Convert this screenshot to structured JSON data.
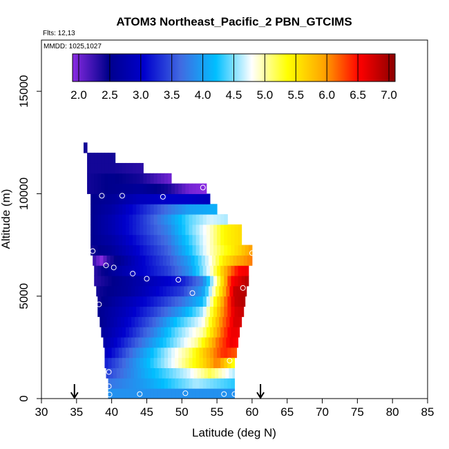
{
  "chart_data": {
    "type": "heatmap",
    "title": "ATOM3 Northeast_Pacific_2 PBN_GTCIMS",
    "flights": "Flts: 12,13",
    "dates": "MMDD: 1025,1027",
    "xlabel": "Latitude (deg N)",
    "ylabel": "Altitude (m)",
    "xlim": [
      30,
      85
    ],
    "ylim": [
      0,
      17500
    ],
    "xticks": [
      "30",
      "35",
      "40",
      "45",
      "50",
      "55",
      "60",
      "65",
      "70",
      "75",
      "80",
      "85"
    ],
    "yticks": [
      "0",
      "5000",
      "10000",
      "15000"
    ],
    "colorbar": {
      "range": [
        1.9,
        7.1
      ],
      "ticks": [
        "2.0",
        "2.5",
        "3.0",
        "3.5",
        "4.0",
        "4.5",
        "5.0",
        "5.5",
        "6.0",
        "6.5",
        "7.0"
      ],
      "colors": [
        "#8a2be2",
        "#00008b",
        "#0000cd",
        "#4169e1",
        "#00bfff",
        "#ffffff",
        "#ffff00",
        "#ffa500",
        "#ff0000",
        "#8b0000"
      ]
    },
    "altitude_bands": [
      {
        "y0": 0,
        "y1": 500,
        "x0": 39.5,
        "x1": 57.5,
        "values": [
          [
            39.5,
            3.9
          ],
          [
            57.5,
            3.9
          ]
        ]
      },
      {
        "y0": 500,
        "y1": 1000,
        "x0": 39.5,
        "x1": 57.5,
        "values": [
          [
            39.5,
            3.7
          ],
          [
            45,
            4.0
          ],
          [
            52,
            4.6
          ],
          [
            57.5,
            4.3
          ]
        ]
      },
      {
        "y0": 1000,
        "y1": 1500,
        "x0": 39.2,
        "x1": 57.5,
        "values": [
          [
            39.2,
            3.4
          ],
          [
            45,
            4.1
          ],
          [
            51,
            4.7
          ],
          [
            54,
            5.2
          ],
          [
            57.5,
            4.6
          ]
        ]
      },
      {
        "y0": 1500,
        "y1": 2000,
        "x0": 39.0,
        "x1": 57.5,
        "values": [
          [
            39,
            3.2
          ],
          [
            44,
            4.0
          ],
          [
            49,
            4.8
          ],
          [
            53,
            5.6
          ],
          [
            55,
            6.1
          ],
          [
            57.5,
            5.3
          ]
        ]
      },
      {
        "y0": 2000,
        "y1": 2500,
        "x0": 39.0,
        "x1": 57.8,
        "values": [
          [
            39,
            2.9
          ],
          [
            43,
            3.7
          ],
          [
            48,
            4.6
          ],
          [
            51,
            5.1
          ],
          [
            53.5,
            5.8
          ],
          [
            56,
            6.4
          ],
          [
            57.8,
            6.2
          ]
        ]
      },
      {
        "y0": 2500,
        "y1": 3000,
        "x0": 38.8,
        "x1": 58.0,
        "values": [
          [
            38.8,
            2.7
          ],
          [
            42,
            3.3
          ],
          [
            46,
            4.0
          ],
          [
            49,
            4.5
          ],
          [
            52,
            5.0
          ],
          [
            55,
            6.1
          ],
          [
            57,
            6.6
          ],
          [
            58,
            6.5
          ]
        ]
      },
      {
        "y0": 3000,
        "y1": 3500,
        "x0": 38.5,
        "x1": 58.2,
        "values": [
          [
            38.5,
            2.6
          ],
          [
            42,
            3.1
          ],
          [
            46,
            3.8
          ],
          [
            49,
            4.4
          ],
          [
            53,
            5.0
          ],
          [
            55.5,
            6.1
          ],
          [
            57,
            6.6
          ],
          [
            58.2,
            6.6
          ]
        ]
      },
      {
        "y0": 3500,
        "y1": 4000,
        "x0": 38.3,
        "x1": 58.5,
        "values": [
          [
            38.3,
            2.5
          ],
          [
            42,
            3.0
          ],
          [
            46,
            3.6
          ],
          [
            49,
            4.2
          ],
          [
            53,
            4.8
          ],
          [
            55.5,
            6.0
          ],
          [
            57.5,
            6.7
          ],
          [
            58.5,
            6.7
          ]
        ]
      },
      {
        "y0": 4000,
        "y1": 4500,
        "x0": 38.0,
        "x1": 58.8,
        "values": [
          [
            38,
            2.5
          ],
          [
            42,
            2.9
          ],
          [
            46,
            3.4
          ],
          [
            50,
            4.0
          ],
          [
            53,
            4.6
          ],
          [
            55.5,
            5.9
          ],
          [
            57.5,
            6.7
          ],
          [
            58.8,
            6.8
          ]
        ]
      },
      {
        "y0": 4500,
        "y1": 5000,
        "x0": 38.0,
        "x1": 59.0,
        "values": [
          [
            38,
            2.4
          ],
          [
            42,
            2.8
          ],
          [
            46,
            3.2
          ],
          [
            50,
            3.7
          ],
          [
            53,
            4.2
          ],
          [
            55,
            5.5
          ],
          [
            57.5,
            6.8
          ],
          [
            59,
            6.9
          ]
        ]
      },
      {
        "y0": 5000,
        "y1": 5500,
        "x0": 37.8,
        "x1": 59.2,
        "values": [
          [
            37.8,
            2.4
          ],
          [
            42,
            2.6
          ],
          [
            46,
            3.0
          ],
          [
            50,
            3.4
          ],
          [
            53,
            4.0
          ],
          [
            55,
            5.2
          ],
          [
            57.5,
            6.8
          ],
          [
            59.2,
            6.9
          ]
        ]
      },
      {
        "y0": 5500,
        "y1": 6000,
        "x0": 37.5,
        "x1": 59.5,
        "values": [
          [
            37.5,
            2.3
          ],
          [
            42,
            2.6
          ],
          [
            46,
            2.9
          ],
          [
            50,
            3.2
          ],
          [
            53,
            3.8
          ],
          [
            55,
            5.0
          ],
          [
            57,
            6.5
          ],
          [
            59.5,
            6.9
          ]
        ]
      },
      {
        "y0": 6000,
        "y1": 6500,
        "x0": 37.5,
        "x1": 59.5,
        "values": [
          [
            37.5,
            2.3
          ],
          [
            40,
            2.6
          ],
          [
            44,
            3.0
          ],
          [
            48,
            3.4
          ],
          [
            51,
            3.9
          ],
          [
            54,
            4.8
          ],
          [
            56,
            5.8
          ],
          [
            58,
            6.5
          ],
          [
            59.5,
            6.6
          ]
        ]
      },
      {
        "y0": 6500,
        "y1": 7000,
        "x0": 37.3,
        "x1": 60.0,
        "values": [
          [
            37.3,
            2.3
          ],
          [
            38.5,
            1.9
          ],
          [
            39.5,
            2.3
          ],
          [
            44,
            3.0
          ],
          [
            48,
            3.5
          ],
          [
            51,
            4.0
          ],
          [
            54,
            4.8
          ],
          [
            56,
            5.5
          ],
          [
            58,
            5.9
          ],
          [
            60,
            6.1
          ]
        ]
      },
      {
        "y0": 7000,
        "y1": 7500,
        "x0": 37.0,
        "x1": 60.0,
        "values": [
          [
            37,
            2.4
          ],
          [
            40,
            2.6
          ],
          [
            44,
            3.1
          ],
          [
            48,
            3.6
          ],
          [
            51,
            4.2
          ],
          [
            54,
            4.9
          ],
          [
            56,
            5.3
          ],
          [
            58,
            5.6
          ],
          [
            60,
            6.0
          ]
        ]
      },
      {
        "y0": 7500,
        "y1": 8000,
        "x0": 37.0,
        "x1": 58.5,
        "values": [
          [
            37,
            2.5
          ],
          [
            40,
            2.7
          ],
          [
            44,
            3.2
          ],
          [
            48,
            3.7
          ],
          [
            51,
            4.3
          ],
          [
            54,
            4.9
          ],
          [
            56,
            5.4
          ],
          [
            58.5,
            5.6
          ]
        ]
      },
      {
        "y0": 8000,
        "y1": 8500,
        "x0": 37.0,
        "x1": 58.5,
        "values": [
          [
            37,
            2.5
          ],
          [
            40,
            2.8
          ],
          [
            44,
            3.3
          ],
          [
            48,
            3.8
          ],
          [
            51,
            4.4
          ],
          [
            54,
            4.9
          ],
          [
            56,
            5.4
          ],
          [
            58.5,
            5.6
          ]
        ]
      },
      {
        "y0": 8500,
        "y1": 9000,
        "x0": 37.0,
        "x1": 56.5,
        "values": [
          [
            37,
            2.5
          ],
          [
            40,
            2.8
          ],
          [
            44,
            3.3
          ],
          [
            48,
            3.9
          ],
          [
            51,
            4.4
          ],
          [
            54,
            4.7
          ],
          [
            56.5,
            4.6
          ]
        ]
      },
      {
        "y0": 9000,
        "y1": 9500,
        "x0": 37.0,
        "x1": 55.0,
        "values": [
          [
            37,
            2.5
          ],
          [
            40,
            2.7
          ],
          [
            44,
            3.2
          ],
          [
            48,
            3.7
          ],
          [
            51,
            4.0
          ],
          [
            55,
            4.1
          ]
        ]
      },
      {
        "y0": 9500,
        "y1": 10000,
        "x0": 37.0,
        "x1": 54.0,
        "values": [
          [
            37,
            2.5
          ],
          [
            40,
            2.6
          ],
          [
            44,
            2.9
          ],
          [
            48,
            3.0
          ],
          [
            51,
            3.0
          ],
          [
            54,
            2.9
          ]
        ]
      },
      {
        "y0": 10000,
        "y1": 10500,
        "x0": 36.5,
        "x1": 53.5,
        "values": [
          [
            36.5,
            2.4
          ],
          [
            40,
            2.5
          ],
          [
            44,
            2.6
          ],
          [
            48,
            2.4
          ],
          [
            51,
            2.0
          ],
          [
            53.5,
            1.9
          ]
        ]
      },
      {
        "y0": 10500,
        "y1": 11000,
        "x0": 36.5,
        "x1": 48.5,
        "values": [
          [
            36.5,
            2.4
          ],
          [
            40,
            2.5
          ],
          [
            44,
            2.4
          ],
          [
            48.5,
            2.0
          ]
        ]
      },
      {
        "y0": 11000,
        "y1": 11500,
        "x0": 36.5,
        "x1": 44.5,
        "values": [
          [
            36.5,
            2.4
          ],
          [
            40,
            2.4
          ],
          [
            44.5,
            2.3
          ]
        ]
      },
      {
        "y0": 11500,
        "y1": 12000,
        "x0": 36.5,
        "x1": 40.5,
        "values": [
          [
            36.5,
            2.4
          ],
          [
            40.5,
            2.4
          ]
        ]
      },
      {
        "y0": 12000,
        "y1": 12500,
        "x0": 36.0,
        "x1": 36.5,
        "values": [
          [
            36,
            2.4
          ],
          [
            36.5,
            2.4
          ]
        ]
      }
    ],
    "sample_points": [
      [
        39.7,
        200
      ],
      [
        44.0,
        220
      ],
      [
        50.5,
        260
      ],
      [
        56.0,
        220
      ],
      [
        57.5,
        220
      ],
      [
        39.6,
        600
      ],
      [
        39.6,
        1300
      ],
      [
        56.8,
        1850
      ],
      [
        38.2,
        4600
      ],
      [
        51.5,
        5150
      ],
      [
        58.7,
        5400
      ],
      [
        45.0,
        5850
      ],
      [
        49.5,
        5800
      ],
      [
        43.0,
        6100
      ],
      [
        39.2,
        6500
      ],
      [
        40.3,
        6400
      ],
      [
        37.3,
        7200
      ],
      [
        60.0,
        7100
      ],
      [
        38.6,
        9900
      ],
      [
        41.5,
        9900
      ],
      [
        47.3,
        9850
      ],
      [
        53.0,
        10300
      ]
    ],
    "arrows_x": [
      34.7,
      61.2
    ]
  }
}
